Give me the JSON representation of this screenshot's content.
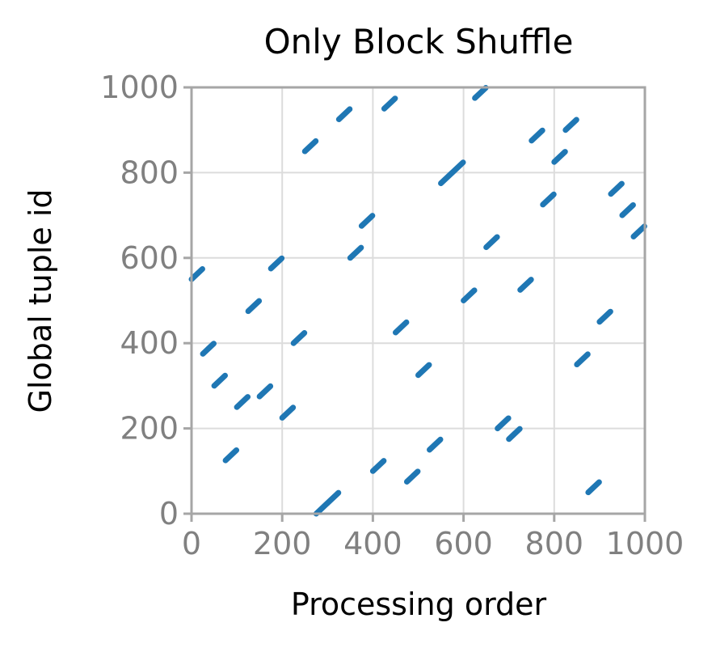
{
  "chart_data": {
    "type": "scatter",
    "title": "Only Block Shuffle",
    "xlabel": "Processing order",
    "ylabel": "Global tuple id",
    "xlim": [
      0,
      1000
    ],
    "ylim": [
      0,
      1000
    ],
    "xticks": [
      0,
      200,
      400,
      600,
      800,
      1000
    ],
    "yticks": [
      0,
      200,
      400,
      600,
      800,
      1000
    ],
    "xtick_labels": [
      "0",
      "200",
      "400",
      "600",
      "800",
      "1000"
    ],
    "ytick_labels": [
      "0",
      "200",
      "400",
      "600",
      "800",
      "1000"
    ],
    "grid": true,
    "series": [
      {
        "color": "#1f77b4",
        "marker": "points",
        "block_size": 25,
        "blocks": [
          {
            "x_start": 0,
            "y_start": 550
          },
          {
            "x_start": 25,
            "y_start": 375
          },
          {
            "x_start": 50,
            "y_start": 300
          },
          {
            "x_start": 75,
            "y_start": 125
          },
          {
            "x_start": 100,
            "y_start": 250
          },
          {
            "x_start": 125,
            "y_start": 475
          },
          {
            "x_start": 150,
            "y_start": 275
          },
          {
            "x_start": 175,
            "y_start": 575
          },
          {
            "x_start": 200,
            "y_start": 225
          },
          {
            "x_start": 225,
            "y_start": 400
          },
          {
            "x_start": 250,
            "y_start": 850
          },
          {
            "x_start": 275,
            "y_start": 0
          },
          {
            "x_start": 300,
            "y_start": 25
          },
          {
            "x_start": 325,
            "y_start": 925
          },
          {
            "x_start": 350,
            "y_start": 600
          },
          {
            "x_start": 375,
            "y_start": 675
          },
          {
            "x_start": 400,
            "y_start": 100
          },
          {
            "x_start": 425,
            "y_start": 950
          },
          {
            "x_start": 450,
            "y_start": 425
          },
          {
            "x_start": 475,
            "y_start": 75
          },
          {
            "x_start": 500,
            "y_start": 325
          },
          {
            "x_start": 525,
            "y_start": 150
          },
          {
            "x_start": 550,
            "y_start": 775
          },
          {
            "x_start": 575,
            "y_start": 800
          },
          {
            "x_start": 600,
            "y_start": 500
          },
          {
            "x_start": 625,
            "y_start": 975
          },
          {
            "x_start": 650,
            "y_start": 625
          },
          {
            "x_start": 675,
            "y_start": 200
          },
          {
            "x_start": 700,
            "y_start": 175
          },
          {
            "x_start": 725,
            "y_start": 525
          },
          {
            "x_start": 750,
            "y_start": 875
          },
          {
            "x_start": 775,
            "y_start": 725
          },
          {
            "x_start": 800,
            "y_start": 825
          },
          {
            "x_start": 825,
            "y_start": 900
          },
          {
            "x_start": 850,
            "y_start": 350
          },
          {
            "x_start": 875,
            "y_start": 50
          },
          {
            "x_start": 900,
            "y_start": 450
          },
          {
            "x_start": 925,
            "y_start": 750
          },
          {
            "x_start": 950,
            "y_start": 700
          },
          {
            "x_start": 975,
            "y_start": 650
          }
        ]
      }
    ]
  }
}
